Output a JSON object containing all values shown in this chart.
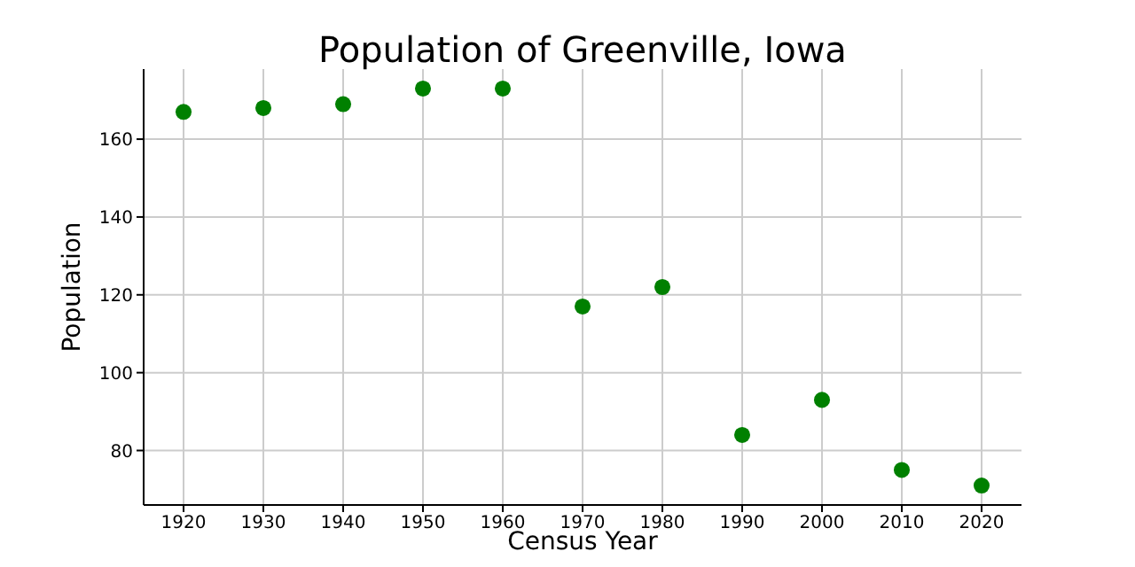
{
  "chart_data": {
    "type": "scatter",
    "title": "Population of Greenville, Iowa",
    "xlabel": "Census Year",
    "ylabel": "Population",
    "x": [
      1920,
      1930,
      1940,
      1950,
      1960,
      1970,
      1980,
      1990,
      2000,
      2010,
      2020
    ],
    "series": [
      {
        "color": "#008000",
        "values": [
          167,
          168,
          169,
          173,
          173,
          117,
          122,
          84,
          93,
          75,
          71
        ]
      }
    ],
    "xlim": [
      1915,
      2025
    ],
    "xticks": [
      1920,
      1930,
      1940,
      1950,
      1960,
      1970,
      1980,
      1990,
      2000,
      2010,
      2020
    ],
    "ylim": [
      66,
      178
    ],
    "yticks": [
      80,
      100,
      120,
      140,
      160
    ],
    "grid": true,
    "marker": "circle"
  }
}
